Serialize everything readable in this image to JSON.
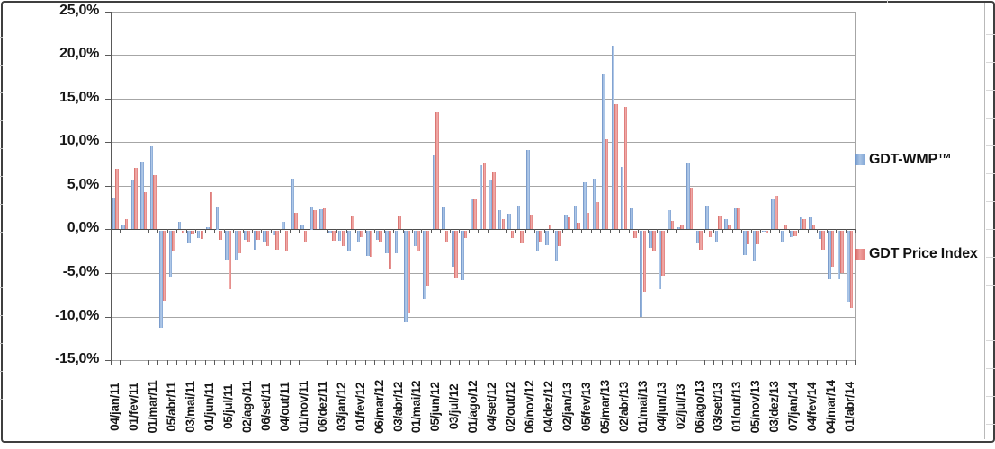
{
  "chart_data": {
    "type": "bar",
    "title": "",
    "xlabel": "",
    "ylabel": "",
    "ylim": [
      -15,
      25
    ],
    "grid": true,
    "legend_position": "right",
    "ytick_values": [
      25,
      20,
      15,
      10,
      5,
      0,
      -5,
      -10,
      -15
    ],
    "ytick_labels": [
      "25,0%",
      "20,0%",
      "15,0%",
      "10,0%",
      "5,0%",
      "0,0%",
      "-5,0%",
      "-10,0%",
      "-15,0%"
    ],
    "categories": [
      "04/jan/11",
      "01/fev/11",
      "01/mar/11",
      "05/abr/11",
      "03/mai/11",
      "01/jun/11",
      "05/jul/11",
      "02/ago/11",
      "06/set/11",
      "04/out/11",
      "01/nov/11",
      "06/dez/11",
      "03/jan/12",
      "01/fev/12",
      "06/mar/12",
      "03/abr/12",
      "01/mai/12",
      "05/jun/12",
      "03/jul/12",
      "01/ago/12",
      "04/set/12",
      "02/out/12",
      "06/nov/12",
      "04/dez/12",
      "02/jan/13",
      "05/fev/13",
      "05/mar/13",
      "02/abr/13",
      "01/mai/13",
      "04/jun/13",
      "02/jul/13",
      "06/ago/13",
      "03/set/13",
      "01/out/13",
      "05/nov/13",
      "03/dez/13",
      "07/jan/14",
      "04/fev/14",
      "04/mar/14",
      "01/abr/14"
    ],
    "auctions_per_category": 2,
    "note_units": "percent change per auction; one x label per two auctions",
    "series": [
      {
        "name": "GDT-WMP™",
        "color": "#7DA0D1",
        "values": [
          3.6,
          0.6,
          5.7,
          7.8,
          9.5,
          -11.2,
          -5.3,
          0.9,
          -1.5,
          -0.9,
          0.3,
          2.5,
          -3.5,
          -3.4,
          -1.1,
          -2.2,
          -1.4,
          -0.6,
          0.9,
          5.8,
          0.6,
          2.5,
          2.3,
          -0.4,
          -1.2,
          -2.3,
          -1.4,
          -2.9,
          -1.1,
          -2.6,
          -2.6,
          -10.6,
          -1.8,
          -7.9,
          8.5,
          2.6,
          -4.2,
          -5.7,
          3.5,
          7.4,
          5.7,
          2.2,
          1.8,
          2.75,
          9.1,
          -2.4,
          -1.7,
          -3.6,
          1.7,
          2.7,
          5.4,
          5.8,
          17.9,
          21.1,
          7.2,
          2.4,
          -9.9,
          -2.0,
          -6.8,
          2.2,
          0.3,
          7.6,
          -1.5,
          2.7,
          -1.4,
          1.2,
          2.4,
          -2.8,
          -3.6,
          -0.2,
          3.5,
          -1.4,
          -0.8,
          1.4,
          1.4,
          -1.0,
          -5.6,
          -5.6,
          -8.2
        ]
      },
      {
        "name": "GDT Price Index",
        "color": "#E07A78",
        "values": [
          7.0,
          1.2,
          7.1,
          4.3,
          6.2,
          -8.1,
          -2.4,
          -0.3,
          -0.5,
          -1.0,
          4.3,
          -1.1,
          -6.8,
          -2.6,
          -1.4,
          -1.1,
          -1.8,
          -2.2,
          -2.3,
          1.9,
          -1.4,
          2.2,
          2.4,
          -1.2,
          -1.8,
          1.6,
          -0.8,
          -3.0,
          -1.4,
          -4.4,
          1.6,
          -9.5,
          -2.4,
          -6.3,
          13.5,
          -1.4,
          -5.5,
          -0.9,
          3.5,
          7.6,
          6.7,
          1.2,
          -0.9,
          -1.5,
          1.75,
          -1.4,
          0.5,
          -1.8,
          1.4,
          0.8,
          1.9,
          3.1,
          10.4,
          14.4,
          14.1,
          -0.9,
          -7.1,
          -2.4,
          -5.2,
          1.0,
          0.6,
          4.8,
          -2.2,
          -0.8,
          1.6,
          0.55,
          2.4,
          -1.6,
          -1.6,
          -0.3,
          3.9,
          0.6,
          -0.7,
          1.2,
          0.5,
          -2.2,
          -4.2,
          -4.9,
          -8.9
        ]
      }
    ]
  },
  "legend": {
    "series1_label": "GDT-WMP™",
    "series2_label": "GDT Price Index"
  }
}
